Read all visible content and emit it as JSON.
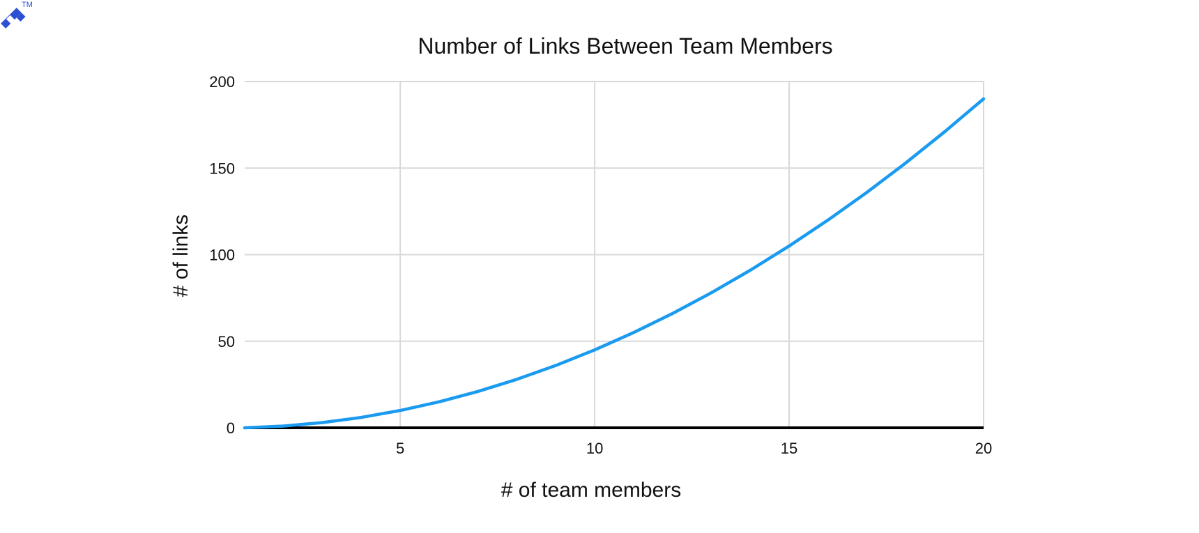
{
  "brand": {
    "mark_icon": "toptal-logo-icon",
    "trademark": "TM",
    "color": "#2b50d6"
  },
  "chart_data": {
    "type": "line",
    "title": "Number of Links Between Team Members",
    "xlabel": "# of team members",
    "ylabel": "# of links",
    "xlim": [
      1,
      20
    ],
    "ylim": [
      0,
      200
    ],
    "x_ticks": [
      5,
      10,
      15,
      20
    ],
    "y_ticks": [
      0,
      50,
      100,
      150,
      200
    ],
    "grid": true,
    "legend": "none",
    "series": [
      {
        "color": "#1a9bf0",
        "x": [
          1,
          2,
          3,
          4,
          5,
          6,
          7,
          8,
          9,
          10,
          11,
          12,
          13,
          14,
          15,
          16,
          17,
          18,
          19,
          20
        ],
        "y": [
          0,
          1,
          3,
          6,
          10,
          15,
          21,
          28,
          36,
          45,
          55,
          66,
          78,
          91,
          105,
          120,
          136,
          153,
          171,
          190
        ]
      }
    ]
  }
}
